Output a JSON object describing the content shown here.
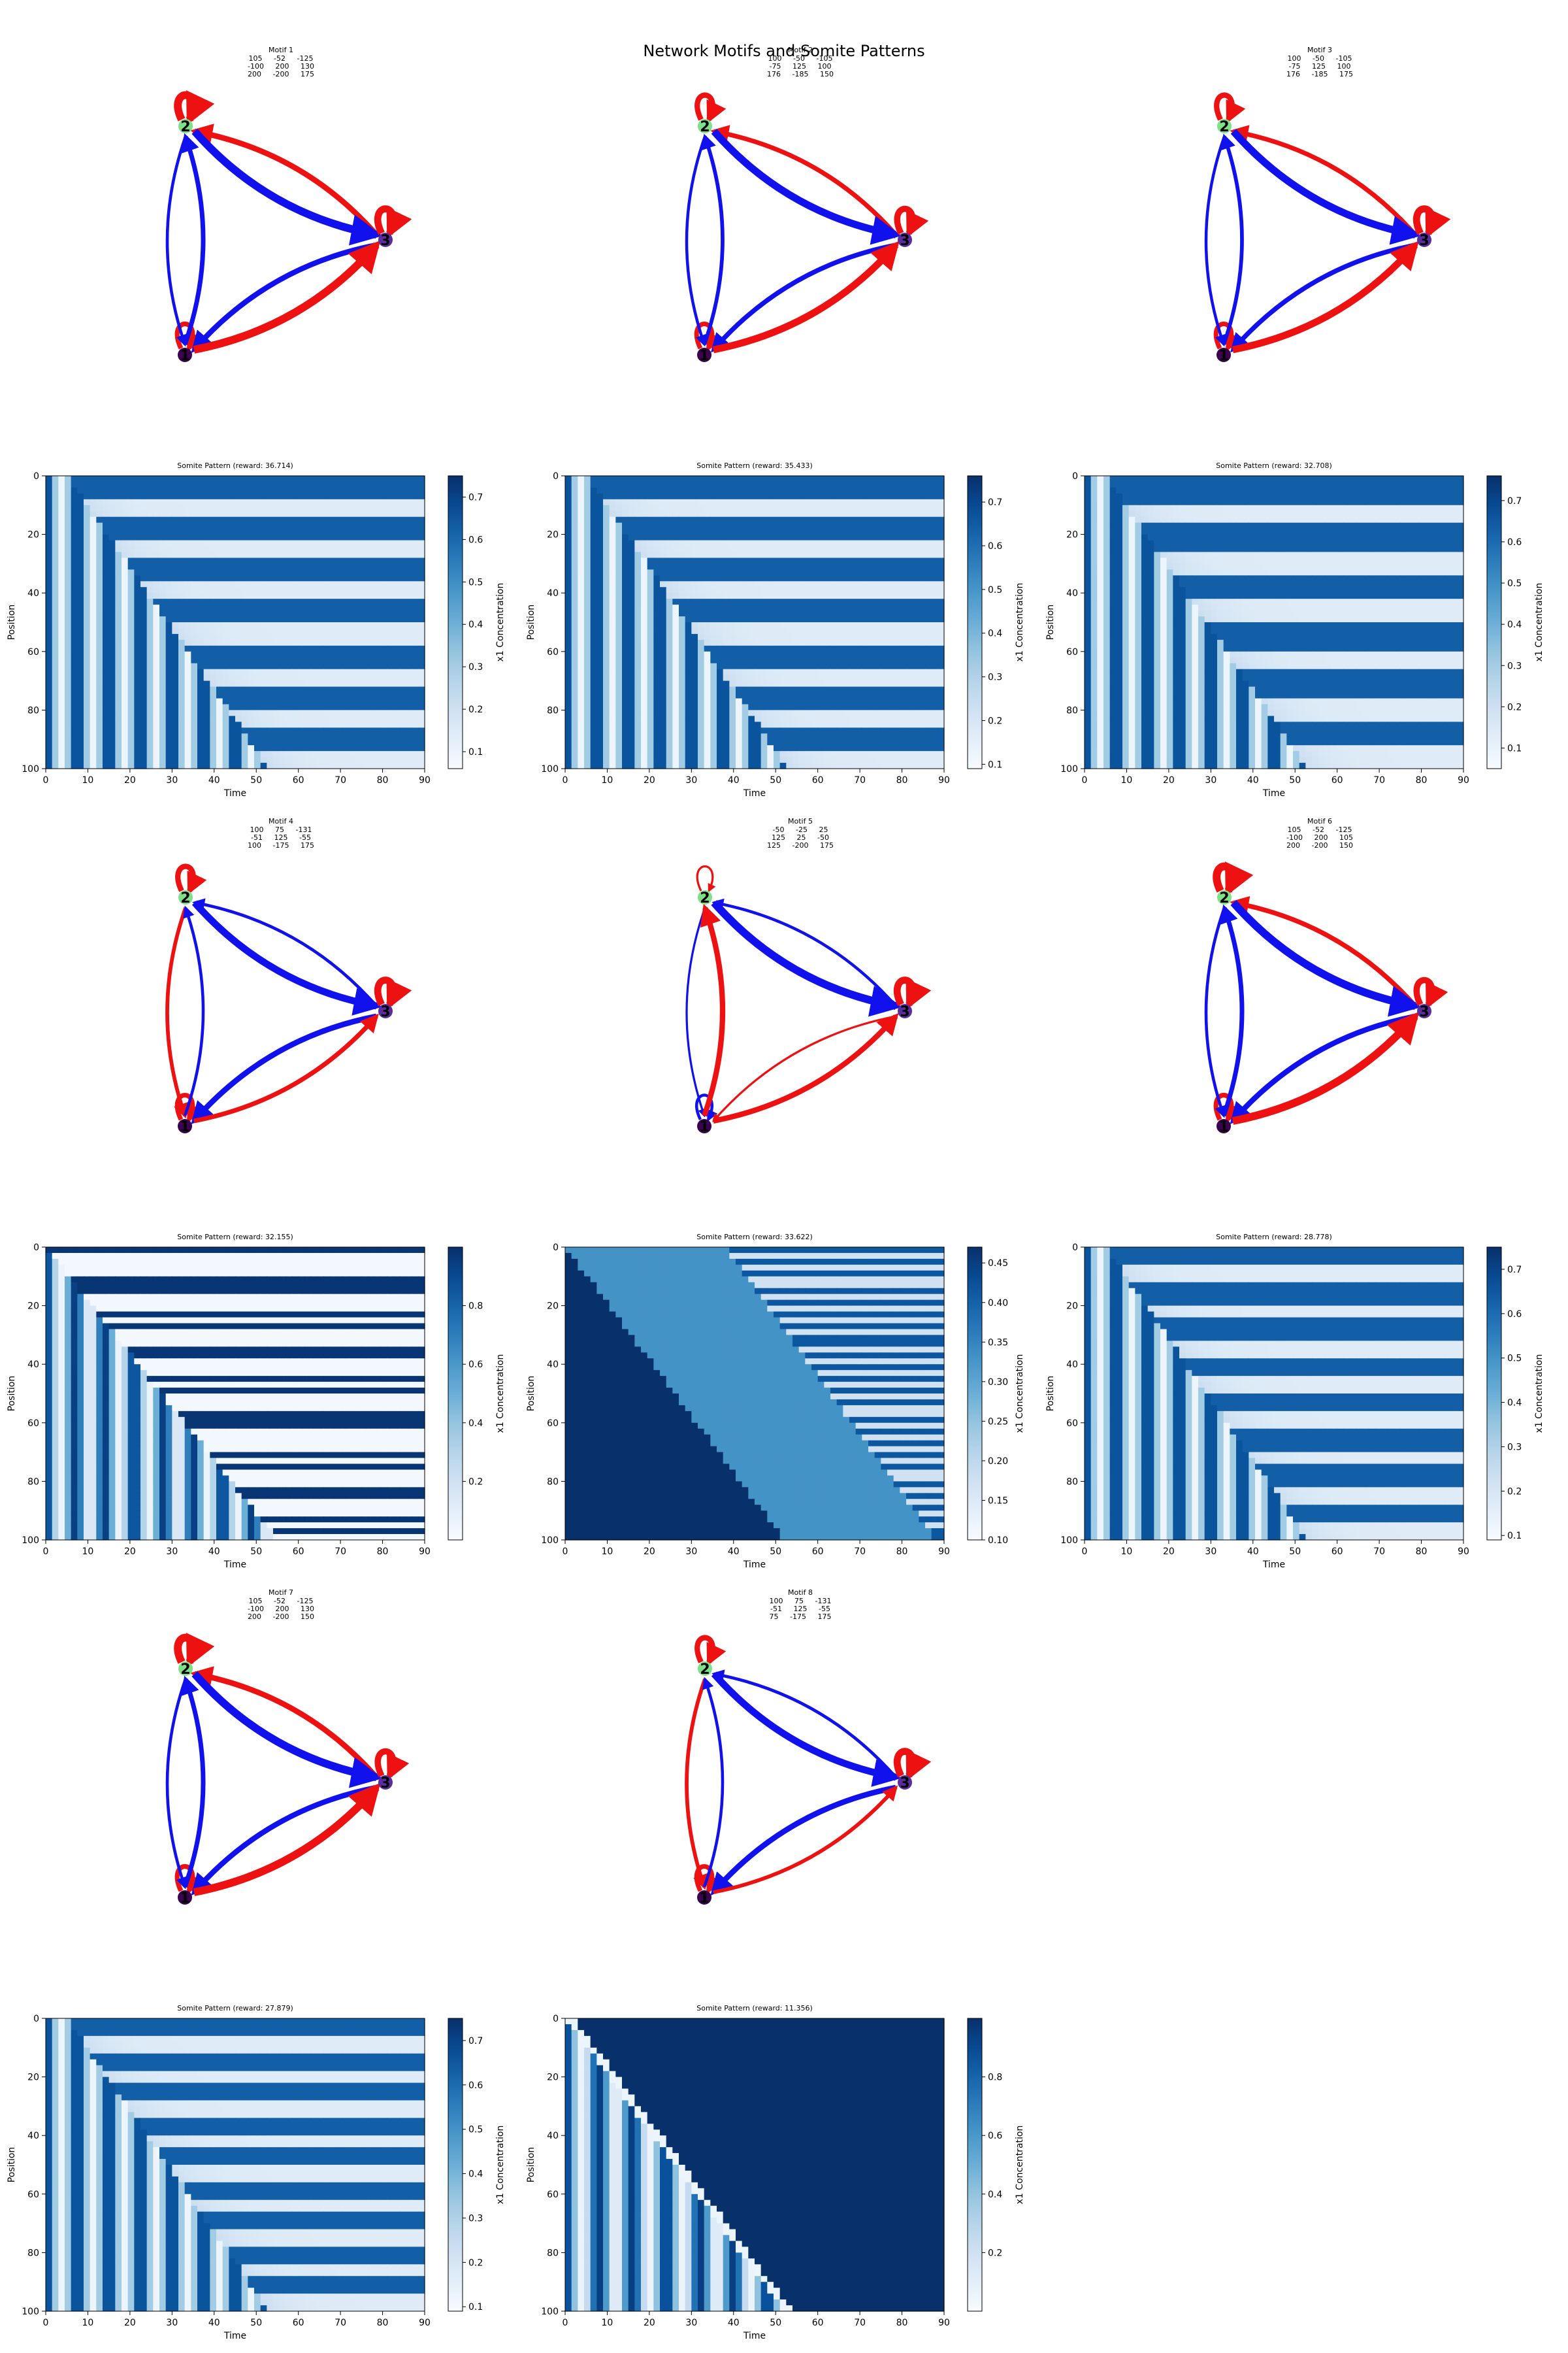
{
  "figure_title": "Network Motifs and Somite Patterns",
  "colors": {
    "activation": "#ee1111",
    "repression": "#1111ee",
    "node_gene1": "#3b0050",
    "node_gene2": "#7fe08a",
    "node_gene3": "#5a2ca0",
    "colormap": "Blues"
  },
  "motifs": [
    {
      "title": "Motif 1",
      "matrix": [
        [
          "105",
          "-52",
          "-125"
        ],
        [
          "-100",
          "200",
          "130"
        ],
        [
          "200",
          "-200",
          "175"
        ]
      ]
    },
    {
      "title": "Motif 2",
      "matrix": [
        [
          "100",
          "-50",
          "-105"
        ],
        [
          "-75",
          "125",
          "100"
        ],
        [
          "176",
          "-185",
          "150"
        ]
      ]
    },
    {
      "title": "Motif 3",
      "matrix": [
        [
          "100",
          "-50",
          "-105"
        ],
        [
          "-75",
          "125",
          "100"
        ],
        [
          "176",
          "-185",
          "175"
        ]
      ]
    },
    {
      "title": "Motif 4",
      "matrix": [
        [
          "100",
          "75",
          "-131"
        ],
        [
          "-51",
          "125",
          "-55"
        ],
        [
          "100",
          "-175",
          "175"
        ]
      ]
    },
    {
      "title": "Motif 5",
      "matrix": [
        [
          "-50",
          "-25",
          "25"
        ],
        [
          "125",
          "25",
          "-50"
        ],
        [
          "125",
          "-200",
          "175"
        ]
      ]
    },
    {
      "title": "Motif 6",
      "matrix": [
        [
          "105",
          "-52",
          "-125"
        ],
        [
          "-100",
          "200",
          "105"
        ],
        [
          "200",
          "-200",
          "150"
        ]
      ]
    },
    {
      "title": "Motif 7",
      "matrix": [
        [
          "105",
          "-52",
          "-125"
        ],
        [
          "-100",
          "200",
          "130"
        ],
        [
          "200",
          "-200",
          "150"
        ]
      ]
    },
    {
      "title": "Motif 8",
      "matrix": [
        [
          "100",
          "75",
          "-131"
        ],
        [
          "-51",
          "125",
          "-55"
        ],
        [
          "75",
          "-175",
          "175"
        ]
      ]
    }
  ],
  "chart_data": [
    {
      "type": "heatmap",
      "title": "Somite Pattern (reward: 36.714)",
      "xlabel": "Time",
      "ylabel": "Position",
      "colorbar_label": "x1 Concentration",
      "xlim": [
        0,
        90
      ],
      "ylim": [
        100,
        0
      ],
      "x_ticks": [
        "0",
        "10",
        "20",
        "30",
        "40",
        "50",
        "60",
        "70",
        "80",
        "90"
      ],
      "y_ticks": [
        "0",
        "20",
        "40",
        "60",
        "80",
        "100"
      ],
      "colorbar_ticks": [
        "0.1",
        "0.2",
        "0.3",
        "0.4",
        "0.5",
        "0.6",
        "0.7"
      ],
      "colorbar_range": [
        0.06,
        0.75
      ],
      "pattern": "somite",
      "n_stripes": 7
    },
    {
      "type": "heatmap",
      "title": "Somite Pattern (reward: 35.433)",
      "xlabel": "Time",
      "ylabel": "Position",
      "colorbar_label": "x1 Concentration",
      "xlim": [
        0,
        90
      ],
      "ylim": [
        100,
        0
      ],
      "x_ticks": [
        "0",
        "10",
        "20",
        "30",
        "40",
        "50",
        "60",
        "70",
        "80",
        "90"
      ],
      "y_ticks": [
        "0",
        "20",
        "40",
        "60",
        "80",
        "100"
      ],
      "colorbar_ticks": [
        "0.1",
        "0.2",
        "0.3",
        "0.4",
        "0.5",
        "0.6",
        "0.7"
      ],
      "colorbar_range": [
        0.09,
        0.76
      ],
      "pattern": "somite",
      "n_stripes": 7
    },
    {
      "type": "heatmap",
      "title": "Somite Pattern (reward: 32.708)",
      "xlabel": "Time",
      "ylabel": "Position",
      "colorbar_label": "x1 Concentration",
      "xlim": [
        0,
        90
      ],
      "ylim": [
        100,
        0
      ],
      "x_ticks": [
        "0",
        "10",
        "20",
        "30",
        "40",
        "50",
        "60",
        "70",
        "80",
        "90"
      ],
      "y_ticks": [
        "0",
        "20",
        "40",
        "60",
        "80",
        "100"
      ],
      "colorbar_ticks": [
        "0.1",
        "0.2",
        "0.3",
        "0.4",
        "0.5",
        "0.6",
        "0.7"
      ],
      "colorbar_range": [
        0.05,
        0.76
      ],
      "pattern": "somite",
      "n_stripes": 6
    },
    {
      "type": "heatmap",
      "title": "Somite Pattern (reward: 32.155)",
      "xlabel": "Time",
      "ylabel": "Position",
      "colorbar_label": "x1 Concentration",
      "xlim": [
        0,
        90
      ],
      "ylim": [
        100,
        0
      ],
      "x_ticks": [
        "0",
        "10",
        "20",
        "30",
        "40",
        "50",
        "60",
        "70",
        "80",
        "90"
      ],
      "y_ticks": [
        "0",
        "20",
        "40",
        "60",
        "80",
        "100"
      ],
      "colorbar_ticks": [
        "0.2",
        "0.4",
        "0.6",
        "0.8"
      ],
      "colorbar_range": [
        0.0,
        1.0
      ],
      "pattern": "chaotic"
    },
    {
      "type": "heatmap",
      "title": "Somite Pattern (reward: 33.622)",
      "xlabel": "Time",
      "ylabel": "Position",
      "colorbar_label": "x1 Concentration",
      "xlim": [
        0,
        90
      ],
      "ylim": [
        100,
        0
      ],
      "x_ticks": [
        "0",
        "10",
        "20",
        "30",
        "40",
        "50",
        "60",
        "70",
        "80",
        "90"
      ],
      "y_ticks": [
        "0",
        "20",
        "40",
        "60",
        "80",
        "100"
      ],
      "colorbar_ticks": [
        "0.10",
        "0.15",
        "0.20",
        "0.25",
        "0.30",
        "0.35",
        "0.40",
        "0.45"
      ],
      "colorbar_range": [
        0.1,
        0.47
      ],
      "pattern": "diagonal"
    },
    {
      "type": "heatmap",
      "title": "Somite Pattern (reward: 28.778)",
      "xlabel": "Time",
      "ylabel": "Position",
      "colorbar_label": "x1 Concentration",
      "xlim": [
        0,
        90
      ],
      "ylim": [
        100,
        0
      ],
      "x_ticks": [
        "0",
        "10",
        "20",
        "30",
        "40",
        "50",
        "60",
        "70",
        "80",
        "90"
      ],
      "y_ticks": [
        "0",
        "20",
        "40",
        "60",
        "80",
        "100"
      ],
      "colorbar_ticks": [
        "0.1",
        "0.2",
        "0.3",
        "0.4",
        "0.5",
        "0.6",
        "0.7"
      ],
      "colorbar_range": [
        0.09,
        0.75
      ],
      "pattern": "somite",
      "n_stripes": 8
    },
    {
      "type": "heatmap",
      "title": "Somite Pattern (reward: 27.879)",
      "xlabel": "Time",
      "ylabel": "Position",
      "colorbar_label": "x1 Concentration",
      "xlim": [
        0,
        90
      ],
      "ylim": [
        100,
        0
      ],
      "x_ticks": [
        "0",
        "10",
        "20",
        "30",
        "40",
        "50",
        "60",
        "70",
        "80",
        "90"
      ],
      "y_ticks": [
        "0",
        "20",
        "40",
        "60",
        "80",
        "100"
      ],
      "colorbar_ticks": [
        "0.1",
        "0.2",
        "0.3",
        "0.4",
        "0.5",
        "0.6",
        "0.7"
      ],
      "colorbar_range": [
        0.09,
        0.75
      ],
      "pattern": "somite",
      "n_stripes": 9
    },
    {
      "type": "heatmap",
      "title": "Somite Pattern (reward: 11.356)",
      "xlabel": "Time",
      "ylabel": "Position",
      "colorbar_label": "x1 Concentration",
      "xlim": [
        0,
        90
      ],
      "ylim": [
        100,
        0
      ],
      "x_ticks": [
        "0",
        "10",
        "20",
        "30",
        "40",
        "50",
        "60",
        "70",
        "80",
        "90"
      ],
      "y_ticks": [
        "0",
        "20",
        "40",
        "60",
        "80",
        "100"
      ],
      "colorbar_ticks": [
        "0.2",
        "0.4",
        "0.6",
        "0.8"
      ],
      "colorbar_range": [
        0.0,
        1.0
      ],
      "pattern": "wave"
    }
  ]
}
